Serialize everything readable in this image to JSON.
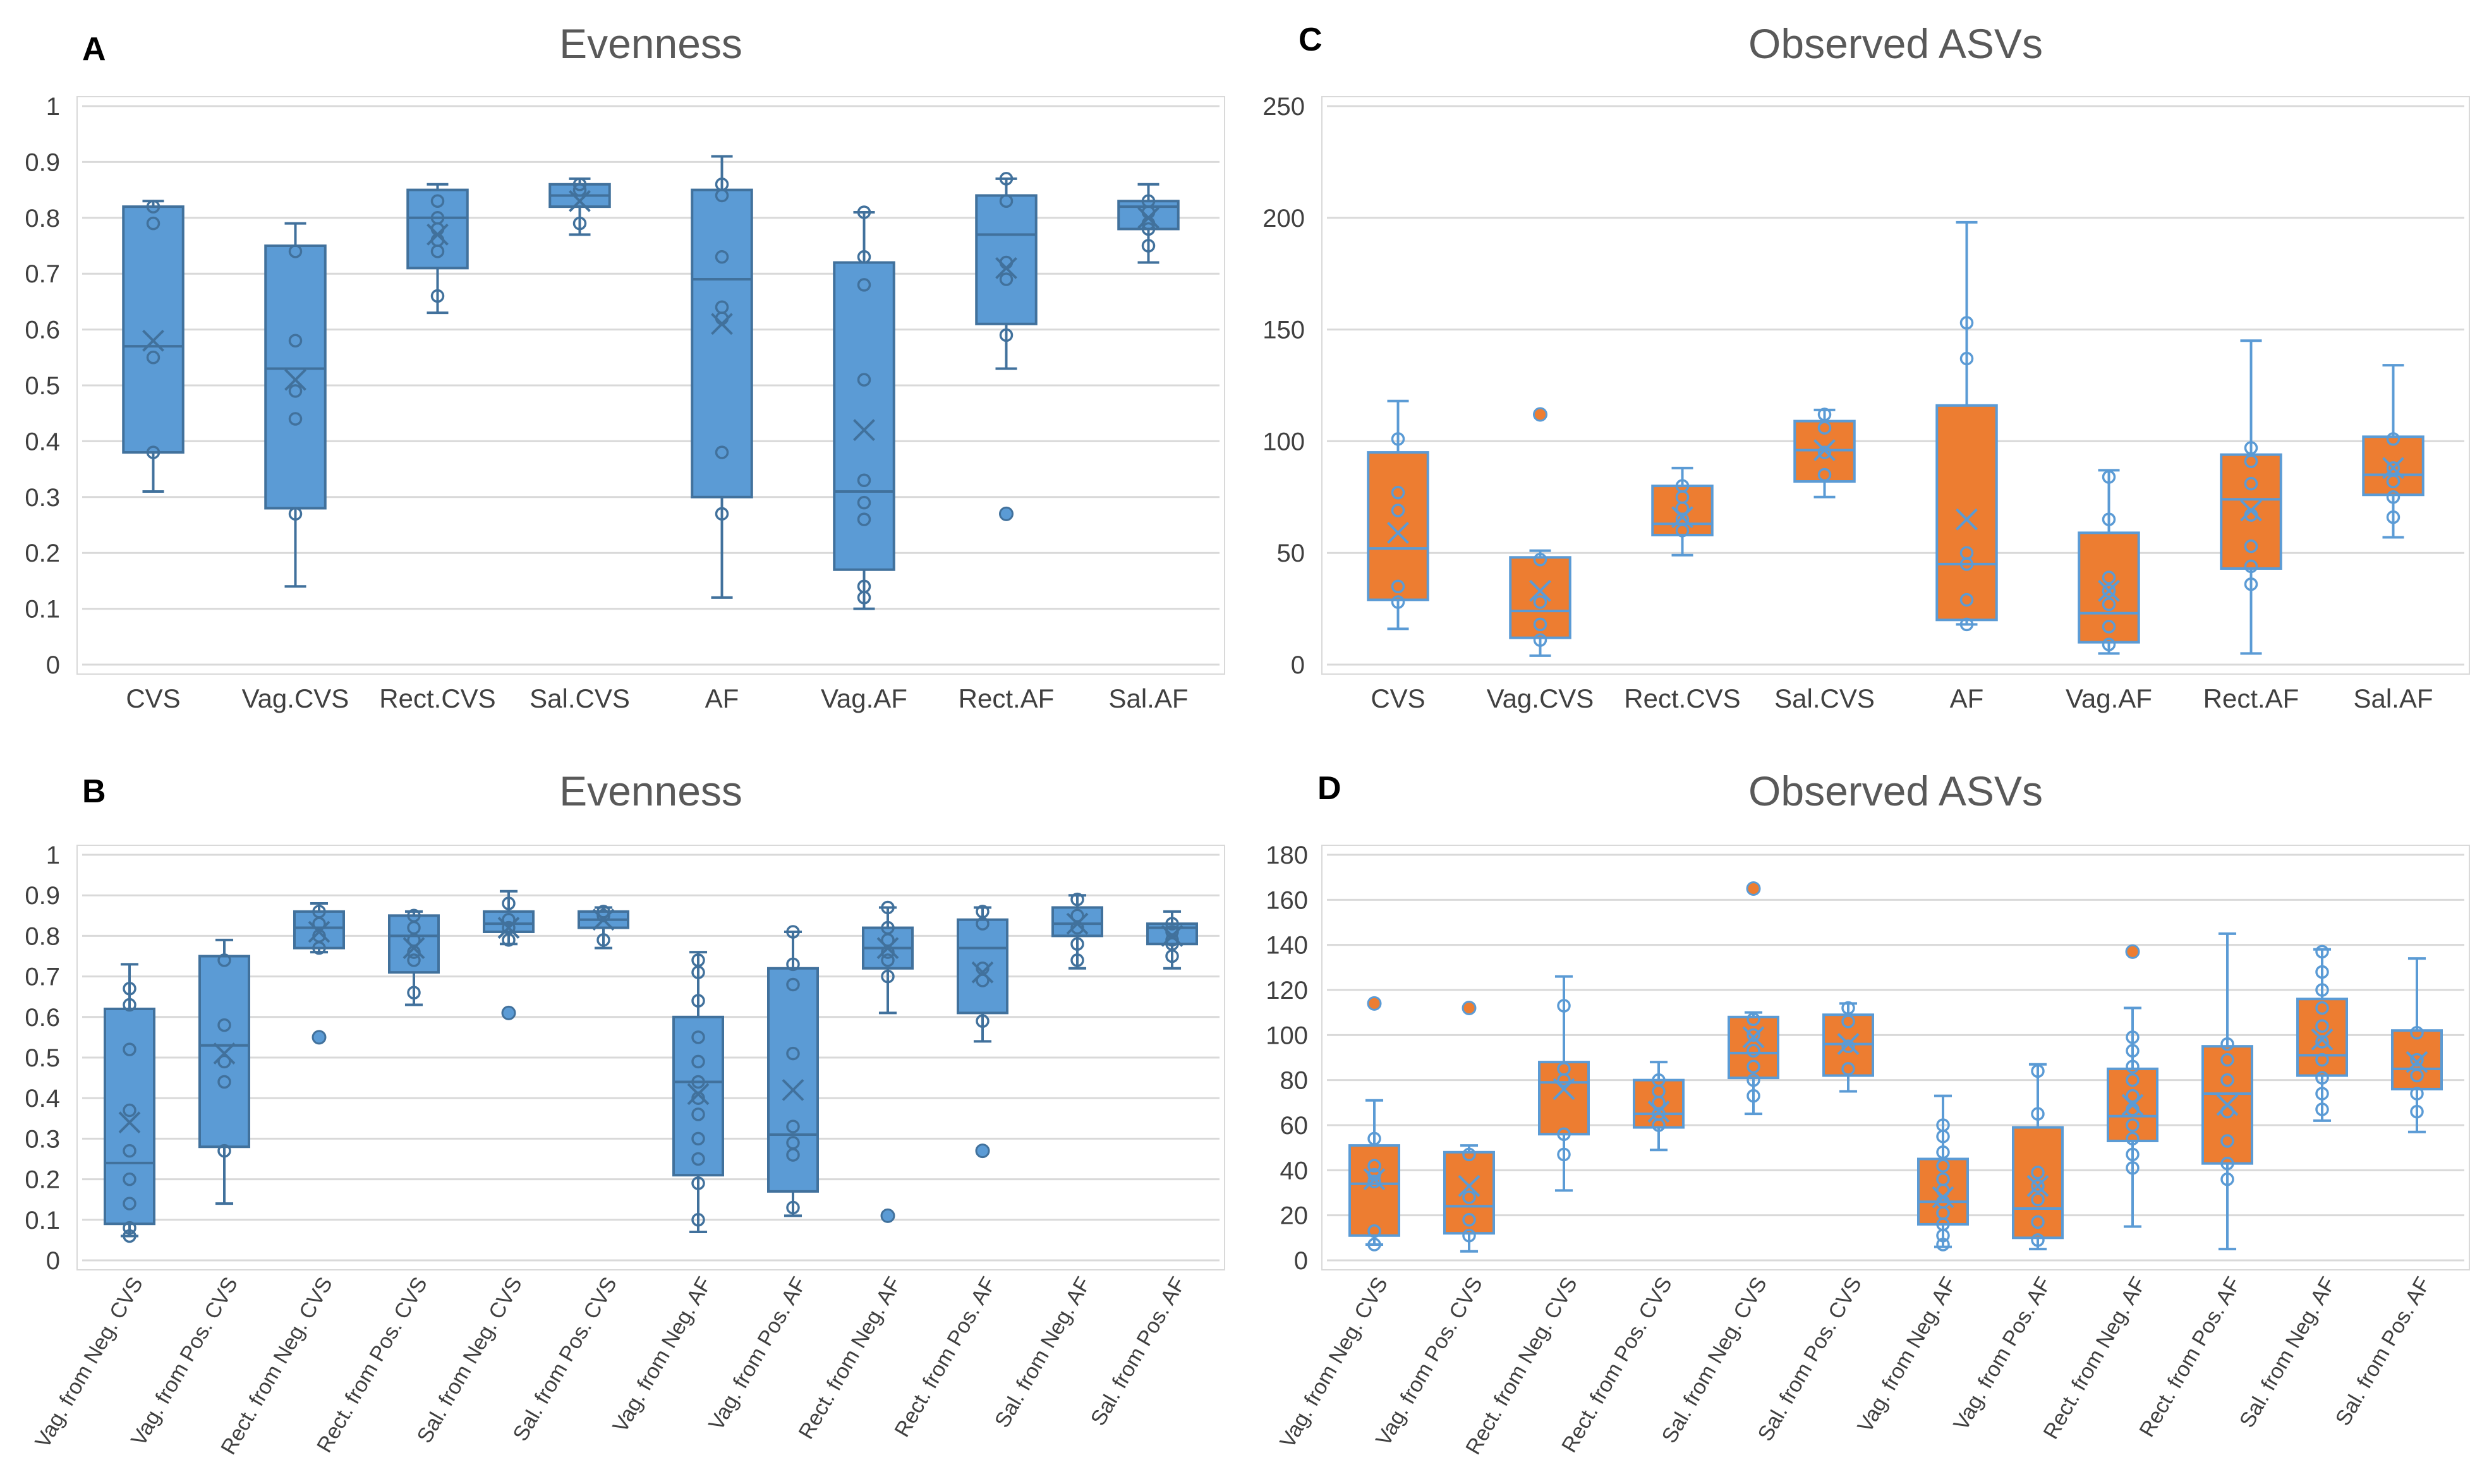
{
  "colors": {
    "blue": "#5B9BD5",
    "blue_edge": "#41719C",
    "orange": "#ED7D31",
    "orange_edge": "#5B9BD5",
    "grid": "#D9D9D9"
  },
  "chart_data": [
    {
      "panel": "A",
      "type": "box",
      "title": "Evenness",
      "color": "blue",
      "ylim": [
        0,
        1
      ],
      "yticks": [
        0,
        0.1,
        0.2,
        0.3,
        0.4,
        0.5,
        0.6,
        0.7,
        0.8,
        0.9,
        1
      ],
      "ytick_labels": [
        "0",
        "0.1",
        "0.2",
        "0.3",
        "0.4",
        "0.5",
        "0.6",
        "0.7",
        "0.8",
        "0.9",
        "1"
      ],
      "rotate_labels": false,
      "categories": [
        "CVS",
        "Vag.CVS",
        "Rect.CVS",
        "Sal.CVS",
        "AF",
        "Vag.AF",
        "Rect.AF",
        "Sal.AF"
      ],
      "boxes": [
        {
          "min": 0.31,
          "q1": 0.38,
          "median": 0.57,
          "q3": 0.82,
          "max": 0.83,
          "mean": 0.58,
          "points": [
            0.82,
            0.79,
            0.55,
            0.38
          ]
        },
        {
          "min": 0.14,
          "q1": 0.28,
          "median": 0.53,
          "q3": 0.75,
          "max": 0.79,
          "mean": 0.51,
          "points": [
            0.74,
            0.58,
            0.49,
            0.44,
            0.27
          ]
        },
        {
          "min": 0.63,
          "q1": 0.71,
          "median": 0.8,
          "q3": 0.85,
          "max": 0.86,
          "mean": 0.77,
          "points": [
            0.83,
            0.8,
            0.78,
            0.76,
            0.74,
            0.66
          ]
        },
        {
          "min": 0.77,
          "q1": 0.82,
          "median": 0.84,
          "q3": 0.86,
          "max": 0.87,
          "mean": 0.83,
          "points": [
            0.86,
            0.85,
            0.79
          ]
        },
        {
          "min": 0.12,
          "q1": 0.3,
          "median": 0.69,
          "q3": 0.85,
          "max": 0.91,
          "mean": 0.61,
          "points": [
            0.86,
            0.84,
            0.73,
            0.64,
            0.62,
            0.38,
            0.27
          ]
        },
        {
          "min": 0.1,
          "q1": 0.17,
          "median": 0.31,
          "q3": 0.72,
          "max": 0.81,
          "mean": 0.42,
          "points": [
            0.81,
            0.73,
            0.68,
            0.51,
            0.33,
            0.29,
            0.26,
            0.14,
            0.12
          ]
        },
        {
          "min": 0.53,
          "q1": 0.61,
          "median": 0.77,
          "q3": 0.84,
          "max": 0.87,
          "mean": 0.71,
          "points": [
            0.87,
            0.83,
            0.72,
            0.69,
            0.59
          ],
          "outliers": [
            0.27
          ]
        },
        {
          "min": 0.72,
          "q1": 0.78,
          "median": 0.82,
          "q3": 0.83,
          "max": 0.86,
          "mean": 0.8,
          "points": [
            0.83,
            0.81,
            0.79,
            0.78,
            0.75
          ]
        }
      ]
    },
    {
      "panel": "C",
      "type": "box",
      "title": "Observed ASVs",
      "color": "orange",
      "ylim": [
        0,
        250
      ],
      "yticks": [
        0,
        50,
        100,
        150,
        200,
        250
      ],
      "ytick_labels": [
        "0",
        "50",
        "100",
        "150",
        "200",
        "250"
      ],
      "rotate_labels": false,
      "categories": [
        "CVS",
        "Vag.CVS",
        "Rect.CVS",
        "Sal.CVS",
        "AF",
        "Vag.AF",
        "Rect.AF",
        "Sal.AF"
      ],
      "boxes": [
        {
          "min": 16,
          "q1": 29,
          "median": 52,
          "q3": 95,
          "max": 118,
          "mean": 59,
          "points": [
            101,
            77,
            69,
            35,
            28
          ]
        },
        {
          "min": 4,
          "q1": 12,
          "median": 24,
          "q3": 48,
          "max": 51,
          "mean": 33,
          "points": [
            47,
            28,
            18,
            11
          ],
          "outliers": [
            112
          ]
        },
        {
          "min": 49,
          "q1": 58,
          "median": 63,
          "q3": 80,
          "max": 88,
          "mean": 66,
          "points": [
            80,
            75,
            70,
            65,
            60
          ]
        },
        {
          "min": 75,
          "q1": 82,
          "median": 96,
          "q3": 109,
          "max": 114,
          "mean": 96,
          "points": [
            112,
            106,
            95,
            85
          ]
        },
        {
          "min": 18,
          "q1": 20,
          "median": 45,
          "q3": 116,
          "max": 198,
          "mean": 65,
          "points": [
            153,
            137,
            50,
            45,
            29,
            18
          ]
        },
        {
          "min": 5,
          "q1": 10,
          "median": 23,
          "q3": 59,
          "max": 87,
          "mean": 33,
          "points": [
            84,
            65,
            39,
            33,
            27,
            17,
            9
          ]
        },
        {
          "min": 5,
          "q1": 43,
          "median": 74,
          "q3": 94,
          "max": 145,
          "mean": 69,
          "points": [
            97,
            91,
            81,
            67,
            53,
            44,
            36
          ]
        },
        {
          "min": 57,
          "q1": 76,
          "median": 85,
          "q3": 102,
          "max": 134,
          "mean": 88,
          "points": [
            101,
            88,
            82,
            75,
            66
          ]
        }
      ]
    },
    {
      "panel": "B",
      "type": "box",
      "title": "Evenness",
      "color": "blue",
      "ylim": [
        0,
        1
      ],
      "yticks": [
        0,
        0.1,
        0.2,
        0.3,
        0.4,
        0.5,
        0.6,
        0.7,
        0.8,
        0.9,
        1
      ],
      "ytick_labels": [
        "0",
        "0.1",
        "0.2",
        "0.3",
        "0.4",
        "0.5",
        "0.6",
        "0.7",
        "0.8",
        "0.9",
        "1"
      ],
      "rotate_labels": true,
      "categories": [
        "Vag. from Neg. CVS",
        "Vag. from Pos. CVS",
        "Rect. from Neg. CVS",
        "Rect. from Pos. CVS",
        "Sal. from Neg. CVS",
        "Sal. from Pos. CVS",
        "Vag. from Neg. AF",
        "Vag. from Pos. AF",
        "Rect. from Neg. AF",
        "Rect. from Pos. AF",
        "Sal. from Neg. AF",
        "Sal. from Pos. AF"
      ],
      "boxes": [
        {
          "min": 0.06,
          "q1": 0.09,
          "median": 0.24,
          "q3": 0.62,
          "max": 0.73,
          "mean": 0.34,
          "points": [
            0.67,
            0.63,
            0.52,
            0.37,
            0.27,
            0.2,
            0.14,
            0.08,
            0.06
          ]
        },
        {
          "min": 0.14,
          "q1": 0.28,
          "median": 0.53,
          "q3": 0.75,
          "max": 0.79,
          "mean": 0.51,
          "points": [
            0.74,
            0.58,
            0.49,
            0.44,
            0.27
          ]
        },
        {
          "min": 0.76,
          "q1": 0.77,
          "median": 0.82,
          "q3": 0.86,
          "max": 0.88,
          "mean": 0.81,
          "points": [
            0.86,
            0.83,
            0.8,
            0.77
          ],
          "outliers": [
            0.55
          ]
        },
        {
          "min": 0.63,
          "q1": 0.71,
          "median": 0.8,
          "q3": 0.85,
          "max": 0.86,
          "mean": 0.77,
          "points": [
            0.85,
            0.82,
            0.79,
            0.76,
            0.74,
            0.66
          ]
        },
        {
          "min": 0.78,
          "q1": 0.81,
          "median": 0.83,
          "q3": 0.86,
          "max": 0.91,
          "mean": 0.82,
          "points": [
            0.88,
            0.84,
            0.82,
            0.79
          ],
          "outliers": [
            0.61
          ]
        },
        {
          "min": 0.77,
          "q1": 0.82,
          "median": 0.84,
          "q3": 0.86,
          "max": 0.87,
          "mean": 0.84,
          "points": [
            0.86,
            0.85,
            0.79
          ]
        },
        {
          "min": 0.07,
          "q1": 0.21,
          "median": 0.44,
          "q3": 0.6,
          "max": 0.76,
          "mean": 0.41,
          "points": [
            0.74,
            0.71,
            0.64,
            0.55,
            0.49,
            0.44,
            0.4,
            0.36,
            0.3,
            0.25,
            0.19,
            0.1
          ]
        },
        {
          "min": 0.11,
          "q1": 0.17,
          "median": 0.31,
          "q3": 0.72,
          "max": 0.81,
          "mean": 0.42,
          "points": [
            0.81,
            0.73,
            0.68,
            0.51,
            0.33,
            0.29,
            0.26,
            0.13
          ]
        },
        {
          "min": 0.61,
          "q1": 0.72,
          "median": 0.77,
          "q3": 0.82,
          "max": 0.87,
          "mean": 0.77,
          "points": [
            0.87,
            0.82,
            0.79,
            0.76,
            0.74,
            0.7
          ],
          "outliers": [
            0.11
          ]
        },
        {
          "min": 0.54,
          "q1": 0.61,
          "median": 0.77,
          "q3": 0.84,
          "max": 0.87,
          "mean": 0.71,
          "points": [
            0.86,
            0.83,
            0.72,
            0.69,
            0.59
          ],
          "outliers": [
            0.27
          ]
        },
        {
          "min": 0.72,
          "q1": 0.8,
          "median": 0.83,
          "q3": 0.87,
          "max": 0.9,
          "mean": 0.83,
          "points": [
            0.89,
            0.85,
            0.82,
            0.78,
            0.74
          ]
        },
        {
          "min": 0.72,
          "q1": 0.78,
          "median": 0.82,
          "q3": 0.83,
          "max": 0.86,
          "mean": 0.8,
          "points": [
            0.83,
            0.81,
            0.79,
            0.78,
            0.75
          ]
        }
      ]
    },
    {
      "panel": "D",
      "type": "box",
      "title": "Observed ASVs",
      "color": "orange",
      "ylim": [
        0,
        180
      ],
      "yticks": [
        0,
        20,
        40,
        60,
        80,
        100,
        120,
        140,
        160,
        180
      ],
      "ytick_labels": [
        "0",
        "20",
        "40",
        "60",
        "80",
        "100",
        "120",
        "140",
        "160",
        "180"
      ],
      "rotate_labels": true,
      "categories": [
        "Vag. from Neg. CVS",
        "Vag. from Pos. CVS",
        "Rect. from Neg. CVS",
        "Rect. from Pos. CVS",
        "Sal. from Neg. CVS",
        "Sal. from Pos. CVS",
        "Vag. from Neg. AF",
        "Vag. from Pos. AF",
        "Rect. from Neg. AF",
        "Rect. from Pos. AF",
        "Sal. from Neg. AF",
        "Sal. from Pos. AF"
      ],
      "boxes": [
        {
          "min": 7,
          "q1": 11,
          "median": 34,
          "q3": 51,
          "max": 71,
          "mean": 36,
          "points": [
            54,
            42,
            38,
            35,
            13,
            7
          ],
          "outliers": [
            114
          ]
        },
        {
          "min": 4,
          "q1": 12,
          "median": 24,
          "q3": 48,
          "max": 51,
          "mean": 33,
          "points": [
            47,
            28,
            18,
            11
          ],
          "outliers": [
            112
          ]
        },
        {
          "min": 31,
          "q1": 56,
          "median": 79,
          "q3": 88,
          "max": 126,
          "mean": 76,
          "points": [
            113,
            85,
            80,
            56,
            47
          ]
        },
        {
          "min": 49,
          "q1": 59,
          "median": 65,
          "q3": 80,
          "max": 88,
          "mean": 66,
          "points": [
            80,
            75,
            70,
            65,
            60
          ]
        },
        {
          "min": 65,
          "q1": 81,
          "median": 92,
          "q3": 108,
          "max": 110,
          "mean": 99,
          "points": [
            107,
            100,
            93,
            86,
            80,
            73
          ],
          "outliers": [
            165
          ]
        },
        {
          "min": 75,
          "q1": 82,
          "median": 96,
          "q3": 109,
          "max": 114,
          "mean": 96,
          "points": [
            112,
            106,
            95,
            85
          ]
        },
        {
          "min": 6,
          "q1": 16,
          "median": 26,
          "q3": 45,
          "max": 73,
          "mean": 28,
          "points": [
            60,
            55,
            48,
            42,
            36,
            31,
            26,
            21,
            16,
            11,
            7
          ]
        },
        {
          "min": 5,
          "q1": 10,
          "median": 23,
          "q3": 59,
          "max": 87,
          "mean": 33,
          "points": [
            84,
            65,
            39,
            33,
            27,
            17,
            9
          ]
        },
        {
          "min": 15,
          "q1": 53,
          "median": 64,
          "q3": 85,
          "max": 112,
          "mean": 69,
          "points": [
            99,
            93,
            86,
            80,
            73,
            67,
            60,
            54,
            47,
            41
          ],
          "outliers": [
            137
          ]
        },
        {
          "min": 5,
          "q1": 43,
          "median": 74,
          "q3": 95,
          "max": 145,
          "mean": 69,
          "points": [
            96,
            89,
            80,
            66,
            53,
            43,
            36
          ]
        },
        {
          "min": 62,
          "q1": 82,
          "median": 91,
          "q3": 116,
          "max": 138,
          "mean": 98,
          "points": [
            137,
            128,
            120,
            112,
            104,
            97,
            89,
            81,
            74,
            67
          ]
        },
        {
          "min": 57,
          "q1": 76,
          "median": 85,
          "q3": 102,
          "max": 134,
          "mean": 88,
          "points": [
            101,
            89,
            82,
            74,
            66
          ]
        }
      ]
    }
  ]
}
